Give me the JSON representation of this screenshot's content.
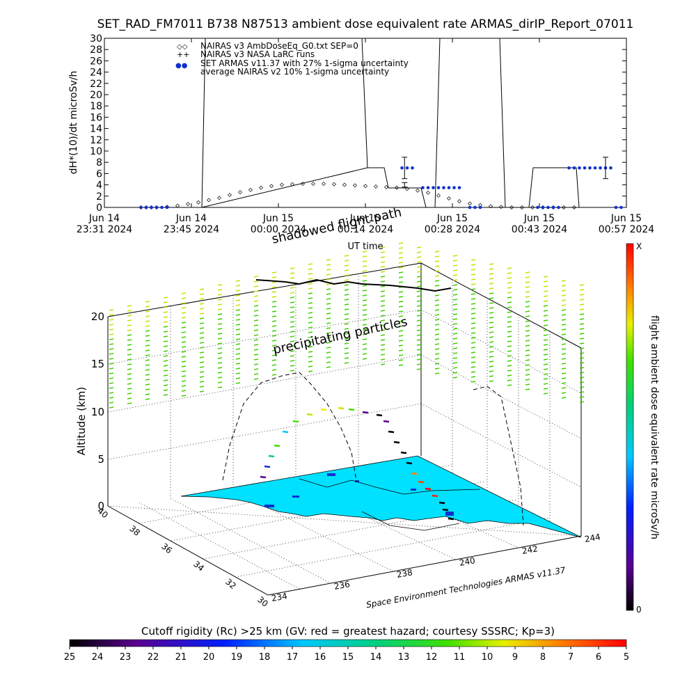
{
  "title": "SET_RAD_FM7011  B738 N87513 ambient dose equivalent rate ARMAS_dirIP_Report_07011",
  "chart_data": [
    {
      "type": "scatter",
      "ylabel": "dH*(10)/dt microSv/h",
      "xlabel": "UT time",
      "ylim": [
        0,
        30
      ],
      "y_ticks": [
        "0",
        "2",
        "4",
        "6",
        "8",
        "10",
        "12",
        "14",
        "16",
        "18",
        "20",
        "22",
        "24",
        "26",
        "28",
        "30"
      ],
      "x_ticks": [
        {
          "line1": "Jun 14",
          "line2": "23:31 2024"
        },
        {
          "line1": "Jun 14",
          "line2": "23:45 2024"
        },
        {
          "line1": "Jun 15",
          "line2": "00:00 2024"
        },
        {
          "line1": "Jun 15",
          "line2": "00:14 2024"
        },
        {
          "line1": "Jun 15",
          "line2": "00:28 2024"
        },
        {
          "line1": "Jun 15",
          "line2": "00:43 2024"
        },
        {
          "line1": "Jun 15",
          "line2": "00:57 2024"
        }
      ],
      "legend": [
        {
          "symbol": "◇◇",
          "label": "NAIRAS v3 AmbDoseEq_G0.txt SEP=0"
        },
        {
          "symbol": "++",
          "label": "NAIRAS v3 NASA LaRC runs"
        },
        {
          "symbol": "●●",
          "label": "SET ARMAS v11.37 with 27% 1-sigma uncertainty"
        },
        {
          "symbol": "",
          "label": "average NAIRAS v2 10% 1-sigma uncertainty"
        }
      ],
      "legend_position": "top-left",
      "series": [
        {
          "name": "NAIRAS v3 AmbDoseEq_G0.txt SEP=0",
          "marker": "diamond",
          "x": [
            0.07,
            0.08,
            0.09,
            0.1,
            0.12,
            0.14,
            0.16,
            0.18,
            0.2,
            0.22,
            0.24,
            0.26,
            0.28,
            0.3,
            0.32,
            0.34,
            0.36,
            0.38,
            0.4,
            0.42,
            0.44,
            0.46,
            0.48,
            0.5,
            0.52,
            0.54,
            0.56,
            0.58,
            0.6,
            0.62,
            0.64,
            0.66,
            0.68,
            0.7,
            0.72,
            0.74,
            0.76,
            0.78,
            0.8,
            0.82,
            0.84,
            0.86,
            0.88,
            0.9
          ],
          "y": [
            0,
            0,
            0,
            0,
            0.1,
            0.3,
            0.6,
            0.9,
            1.3,
            1.7,
            2.2,
            2.7,
            3.1,
            3.5,
            3.8,
            4.0,
            4.1,
            4.2,
            4.2,
            4.2,
            4.1,
            4.0,
            3.9,
            3.8,
            3.7,
            3.6,
            3.5,
            3.3,
            3.0,
            2.6,
            2.1,
            1.6,
            1.1,
            0.7,
            0.4,
            0.2,
            0.1,
            0,
            0,
            0,
            0,
            0,
            0,
            0
          ]
        },
        {
          "name": "SET ARMAS v11.37 with 27% 1-sigma uncertainty",
          "marker": "dot",
          "color": "#1030d0",
          "x": [
            0.07,
            0.08,
            0.09,
            0.1,
            0.11,
            0.12,
            0.57,
            0.58,
            0.59,
            0.61,
            0.62,
            0.63,
            0.64,
            0.65,
            0.66,
            0.67,
            0.68,
            0.7,
            0.71,
            0.72,
            0.83,
            0.84,
            0.85,
            0.86,
            0.87,
            0.89,
            0.9,
            0.91,
            0.92,
            0.93,
            0.94,
            0.95,
            0.96,
            0.97,
            0.98,
            0.99
          ],
          "y": [
            0,
            0,
            0,
            0,
            0,
            0,
            7,
            7,
            7,
            3.5,
            3.5,
            3.5,
            3.5,
            3.5,
            3.5,
            3.5,
            3.5,
            0,
            0,
            0,
            0,
            0,
            0,
            0,
            0,
            7,
            7,
            7,
            7,
            7,
            7,
            7,
            7,
            7,
            0,
            0
          ]
        }
      ],
      "error_bars": [
        {
          "x": 0.575,
          "y": 7,
          "err": 1.9
        },
        {
          "x": 0.575,
          "y": 4,
          "err": 0.4
        },
        {
          "x": 0.96,
          "y": 7,
          "err": 1.9
        }
      ]
    },
    {
      "type": "heatmap",
      "zlabel": "Altitude (km)",
      "z_ticks": [
        "0",
        "5",
        "10",
        "15",
        "20"
      ],
      "lat_ticks": [
        "30",
        "32",
        "34",
        "36",
        "38",
        "40"
      ],
      "lon_ticks": [
        "234",
        "236",
        "238",
        "240",
        "242",
        "244"
      ],
      "annotations": [
        "shadowed flight path",
        "precipitating particles"
      ],
      "credit": "Space Environment Technologies ARMAS v11.37",
      "colorbar_label": "flight ambient dose equivalent rate microSv/h",
      "colorbar_top": "X",
      "colorbar_bottom": "0",
      "cutoff_caption": "Cutoff rigidity (Rc) >25 km (GV: red = greatest hazard; courtesy SSSRC; Kp=3)",
      "cutoff_ticks": [
        "25",
        "24",
        "23",
        "22",
        "21",
        "20",
        "19",
        "18",
        "17",
        "16",
        "15",
        "14",
        "13",
        "12",
        "11",
        "10",
        "9",
        "8",
        "7",
        "6",
        "5"
      ]
    }
  ]
}
